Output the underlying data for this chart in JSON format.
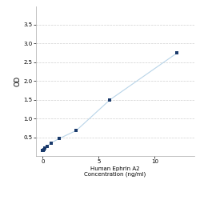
{
  "x": [
    0,
    0.047,
    0.094,
    0.188,
    0.375,
    0.75,
    1.5,
    3,
    6,
    12
  ],
  "y": [
    0.146,
    0.158,
    0.175,
    0.203,
    0.25,
    0.35,
    0.47,
    0.68,
    1.5,
    2.75
  ],
  "line_color": "#b8d4e8",
  "marker_color": "#1a3a6b",
  "marker_size": 10,
  "xlabel_line1": "Human Ephrin A2",
  "xlabel_line2": "Concentration (ng/ml)",
  "ylabel": "OD",
  "xlim": [
    -0.6,
    13.5
  ],
  "ylim": [
    0.0,
    4.0
  ],
  "yticks": [
    0.5,
    1.0,
    1.5,
    2.0,
    2.5,
    3.0,
    3.5
  ],
  "xticks": [
    0,
    5,
    10
  ],
  "xtick_labels": [
    "0",
    "5",
    "10"
  ],
  "grid_color": "#d0d0d0",
  "background_color": "#ffffff",
  "tick_font_size": 5,
  "label_font_size": 5
}
